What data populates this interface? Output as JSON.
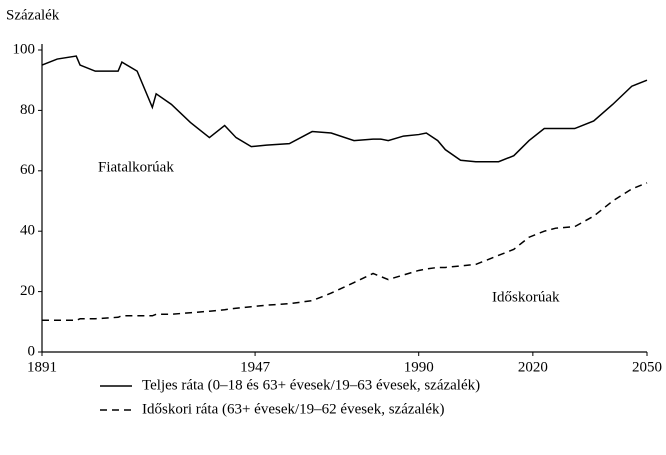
{
  "chart_data": {
    "type": "line",
    "y_label": "Százalék",
    "annotations": [
      "Fiatalkorúak",
      "Időskorúak"
    ],
    "x": [
      1891,
      1895,
      1900,
      1901,
      1905,
      1911,
      1912,
      1916,
      1920,
      1921,
      1925,
      1930,
      1935,
      1939,
      1942,
      1946,
      1950,
      1956,
      1962,
      1967,
      1973,
      1978,
      1980,
      1982,
      1986,
      1990,
      1992,
      1995,
      1997,
      2001,
      2005,
      2011,
      2015,
      2019,
      2023,
      2026,
      2031,
      2036,
      2041,
      2046,
      2050
    ],
    "series": [
      {
        "name": "Teljes ráta (0–18 és 63+ évesek/19–63 évesek, százalék)",
        "color": "#000000",
        "linestyle": "solid",
        "values": [
          95,
          97,
          98,
          95,
          93,
          93,
          96,
          93,
          81,
          85.5,
          82,
          76,
          71,
          75,
          71,
          68,
          68.5,
          69,
          73,
          72.5,
          70,
          70.5,
          70.5,
          70,
          71.5,
          72,
          72.5,
          70,
          67,
          63.5,
          63,
          63,
          65,
          70,
          74,
          74,
          74,
          76.5,
          82,
          88,
          90
        ]
      },
      {
        "name": "Időskori ráta (63+ évesek/19–62 évesek, százalék)",
        "color": "#000000",
        "linestyle": "dashed",
        "values": [
          10.5,
          10.5,
          10.5,
          11,
          11,
          11.5,
          12,
          12,
          12,
          12.5,
          12.5,
          13,
          13.5,
          14,
          14.5,
          15,
          15.5,
          16,
          17,
          19.5,
          23,
          26,
          25,
          24,
          25.5,
          27,
          27.5,
          28,
          28,
          28.5,
          29,
          32,
          34,
          38,
          40,
          41,
          41.5,
          45,
          50,
          54,
          56
        ]
      }
    ],
    "xlim": [
      1891,
      2050
    ],
    "xticks": [
      1891,
      1947,
      1990,
      2020,
      2050
    ],
    "ylim": [
      0,
      100
    ],
    "yticks": [
      0,
      20,
      40,
      60,
      80,
      100
    ],
    "grid": false,
    "legend": "bottom"
  }
}
